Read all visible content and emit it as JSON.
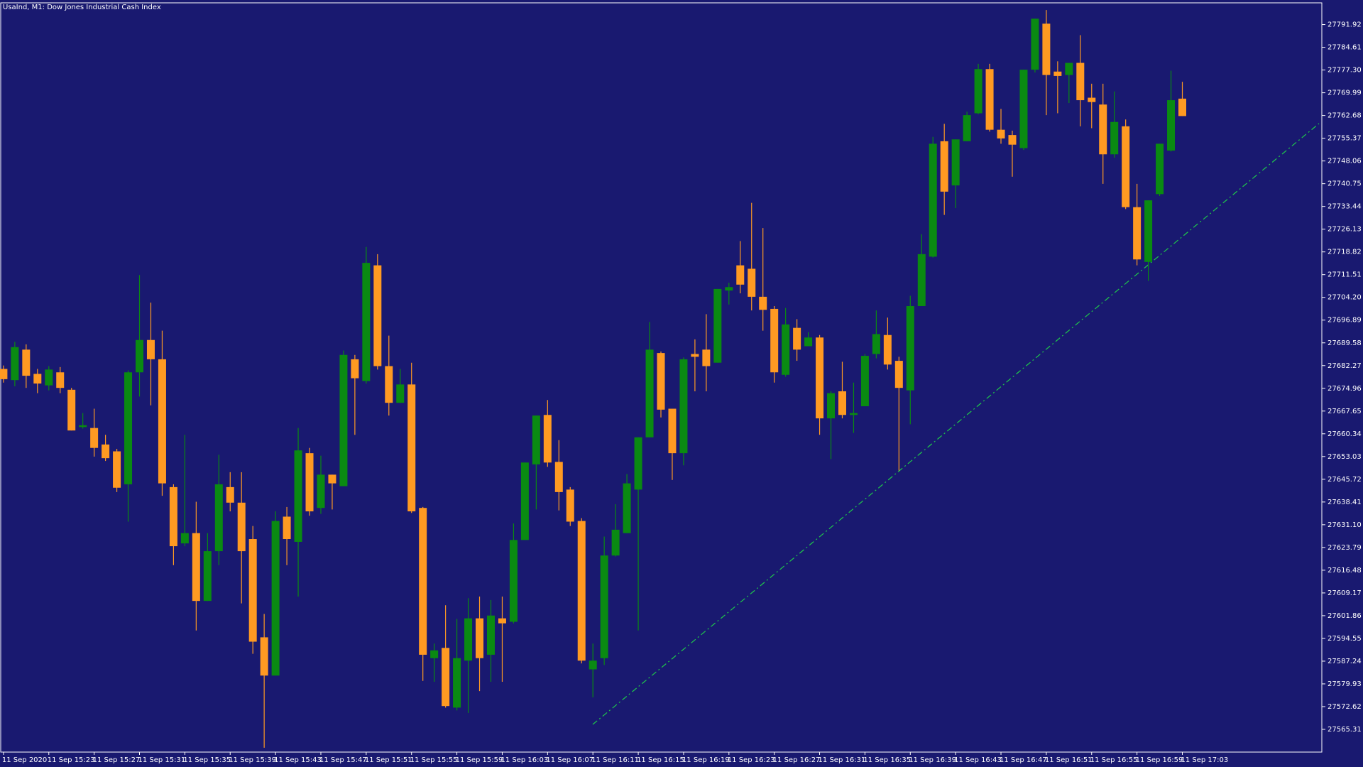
{
  "chart_data": {
    "type": "candlestick",
    "title": "UsaInd, M1:  Dow Jones Industrial Cash Index",
    "up_color": "#0a8a12",
    "down_color": "#ff9a22",
    "background": "#191970",
    "trendline_color": "#1fc94a",
    "categories": [
      "11 Sep 2020",
      null,
      null,
      null,
      "11 Sep 15:23",
      null,
      null,
      null,
      "11 Sep 15:27",
      null,
      null,
      null,
      "11 Sep 15:31",
      null,
      null,
      null,
      "11 Sep 15:35",
      null,
      null,
      null,
      "11 Sep 15:39",
      null,
      null,
      null,
      "11 Sep 15:43",
      null,
      null,
      null,
      "11 Sep 15:47",
      null,
      null,
      null,
      "11 Sep 15:51",
      null,
      null,
      null,
      "11 Sep 15:55",
      null,
      null,
      null,
      "11 Sep 15:59",
      null,
      null,
      null,
      "11 Sep 16:03",
      null,
      null,
      null,
      "11 Sep 16:07",
      null,
      null,
      null,
      "11 Sep 16:11",
      null,
      null,
      null,
      "11 Sep 16:15",
      null,
      null,
      null,
      "11 Sep 16:19",
      null,
      null,
      null,
      "11 Sep 16:23",
      null,
      null,
      null,
      "11 Sep 16:27",
      null,
      null,
      null,
      "11 Sep 16:31",
      null,
      null,
      null,
      "11 Sep 16:35",
      null,
      null,
      null,
      "11 Sep 16:39",
      null,
      null,
      null,
      "11 Sep 16:43",
      null,
      null,
      null,
      "11 Sep 16:47",
      null,
      null,
      null,
      "11 Sep 16:51",
      null,
      null,
      null,
      "11 Sep 16:55",
      null,
      null,
      null,
      "11 Sep 16:59",
      null,
      null,
      null,
      "11 Sep 17:03"
    ],
    "open": [
      27681.2,
      27677.6,
      27687.4,
      27679.6,
      27675.9,
      27680.1,
      27674.5,
      27662.5,
      27662.2,
      27656.9,
      27654.7,
      27644.1,
      27680.1,
      27690.5,
      27684.3,
      27643.2,
      27625.1,
      27628.4,
      27606.6,
      27622.6,
      27643.2,
      27638.2,
      27626.5,
      27594.9,
      27582.6,
      27633.7,
      27625.6,
      27654.1,
      27636.5,
      27647.2,
      27643.5,
      27684.3,
      27677.3,
      27714.5,
      27682.1,
      27670.3,
      27676.2,
      27636.5,
      27588.2,
      27591.5,
      27572.3,
      27587.4,
      27601.0,
      27589.3,
      27601.0,
      27599.9,
      27626.2,
      27650.5,
      27666.4,
      27651.3,
      27642.4,
      27632.3,
      27584.6,
      27588.2,
      27621.2,
      27628.4,
      27642.4,
      27659.2,
      27686.3,
      27668.4,
      27654.1,
      27686.0,
      27687.4,
      27683.2,
      27706.4,
      27714.5,
      27713.4,
      27704.4,
      27700.5,
      27679.3,
      27694.4,
      27688.5,
      27691.3,
      27665.3,
      27674.0,
      27666.4,
      27669.2,
      27686.0,
      27692.1,
      27683.8,
      27674.3,
      27701.4,
      27717.3,
      27754.4,
      27740.2,
      27754.4,
      27763.4,
      27777.6,
      27758.1,
      27756.4,
      27752.2,
      27777.4,
      27792.2,
      27776.8,
      27775.7,
      27779.6,
      27768.4,
      27766.2,
      27750.2,
      27759.2,
      27733.2,
      27715.6,
      27737.4,
      27751.4,
      27768.1
    ],
    "high": [
      27682.3,
      27689.9,
      27689.1,
      27681.2,
      27682.1,
      27681.8,
      27675.1,
      27667.0,
      27668.4,
      27660.0,
      27655.5,
      27680.7,
      27711.4,
      27702.5,
      27693.5,
      27644.1,
      27660.0,
      27638.5,
      27628.4,
      27653.6,
      27648.0,
      27648.0,
      27630.7,
      27602.4,
      27635.4,
      27636.8,
      27662.2,
      27655.8,
      27653.3,
      27647.2,
      27687.1,
      27685.7,
      27720.4,
      27718.1,
      27691.9,
      27681.2,
      27683.2,
      27636.8,
      27592.9,
      27605.2,
      27600.8,
      27607.5,
      27608.0,
      27606.9,
      27608.0,
      27631.5,
      27651.1,
      27666.2,
      27671.2,
      27658.3,
      27643.2,
      27633.2,
      27592.9,
      27627.3,
      27637.7,
      27647.4,
      27659.2,
      27696.3,
      27686.8,
      27668.4,
      27684.9,
      27690.7,
      27698.8,
      27706.9,
      27708.9,
      27722.3,
      27734.6,
      27726.5,
      27701.4,
      27700.8,
      27697.2,
      27693.0,
      27692.1,
      27674.0,
      27683.5,
      27676.8,
      27686.0,
      27700.0,
      27697.7,
      27685.1,
      27704.7,
      27724.5,
      27755.8,
      27760.0,
      27755.0,
      27763.9,
      27779.3,
      27779.3,
      27764.8,
      27757.8,
      27777.4,
      27793.8,
      27796.6,
      27780.1,
      27779.6,
      27788.5,
      27772.9,
      27772.9,
      27770.4,
      27761.4,
      27740.7,
      27735.4,
      27753.6,
      27777.1,
      27773.5
    ],
    "low": [
      27676.8,
      27675.6,
      27675.1,
      27673.4,
      27674.3,
      27673.4,
      27661.4,
      27662.0,
      27653.0,
      27651.6,
      27641.6,
      27632.1,
      27672.3,
      27669.5,
      27640.4,
      27618.1,
      27624.2,
      27597.1,
      27606.6,
      27618.1,
      27635.4,
      27605.8,
      27589.6,
      27559.4,
      27582.6,
      27618.1,
      27608.0,
      27634.0,
      27634.6,
      27636.0,
      27643.5,
      27660.0,
      27676.5,
      27681.0,
      27666.2,
      27670.3,
      27634.9,
      27580.9,
      27580.6,
      27572.3,
      27571.4,
      27570.6,
      27577.6,
      27580.6,
      27580.6,
      27599.4,
      27626.2,
      27636.0,
      27649.7,
      27635.7,
      27630.7,
      27586.5,
      27575.6,
      27586.0,
      27620.9,
      27628.4,
      27597.1,
      27659.2,
      27665.6,
      27645.5,
      27650.2,
      27674.0,
      27674.0,
      27683.2,
      27701.9,
      27705.5,
      27700.0,
      27693.5,
      27676.8,
      27678.7,
      27683.8,
      27688.5,
      27660.0,
      27652.2,
      27665.3,
      27660.6,
      27669.2,
      27684.6,
      27681.0,
      27648.5,
      27663.4,
      27701.4,
      27717.0,
      27730.7,
      27732.9,
      27754.4,
      27763.1,
      27757.5,
      27753.6,
      27743.0,
      27751.6,
      27776.5,
      27762.8,
      27763.4,
      27766.7,
      27759.2,
      27758.6,
      27740.7,
      27749.1,
      27732.6,
      27714.5,
      27709.5,
      27736.8,
      27751.1,
      27762.5
    ],
    "close": [
      27677.9,
      27688.2,
      27679.0,
      27676.5,
      27681.0,
      27675.1,
      27661.4,
      27663.1,
      27655.8,
      27652.5,
      27643.0,
      27680.1,
      27690.5,
      27684.3,
      27644.4,
      27624.2,
      27628.4,
      27606.6,
      27622.6,
      27644.1,
      27638.2,
      27622.6,
      27593.5,
      27582.6,
      27632.3,
      27626.5,
      27655.0,
      27635.4,
      27647.2,
      27644.4,
      27685.7,
      27678.2,
      27715.3,
      27682.1,
      27670.3,
      27676.2,
      27635.4,
      27589.3,
      27590.7,
      27572.8,
      27588.2,
      27601.0,
      27588.2,
      27601.9,
      27599.4,
      27626.2,
      27651.1,
      27666.2,
      27651.1,
      27641.6,
      27632.1,
      27587.4,
      27587.4,
      27621.2,
      27629.5,
      27644.4,
      27659.2,
      27687.4,
      27668.1,
      27654.1,
      27684.3,
      27685.1,
      27682.1,
      27706.9,
      27707.5,
      27708.3,
      27704.4,
      27700.2,
      27680.1,
      27695.5,
      27687.4,
      27691.3,
      27665.3,
      27673.4,
      27666.4,
      27667.0,
      27685.4,
      27692.4,
      27682.6,
      27675.1,
      27701.4,
      27718.1,
      27753.6,
      27738.2,
      27755.0,
      27762.8,
      27777.6,
      27758.1,
      27755.3,
      27753.3,
      27777.4,
      27793.8,
      27775.7,
      27775.4,
      27779.6,
      27767.6,
      27767.0,
      27750.2,
      27760.6,
      27733.2,
      27716.4,
      27735.4,
      27753.6,
      27767.6,
      27762.5
    ],
    "ylim": [
      27558.0,
      27798.9
    ],
    "yticks": [
      27565.31,
      27572.62,
      27579.93,
      27587.24,
      27594.55,
      27601.86,
      27609.17,
      27616.48,
      27623.79,
      {
        "value": 27631.1,
        "label": "27631.10"
      },
      27638.41,
      27645.72,
      27653.03,
      27660.34,
      27667.65,
      27674.96,
      27682.27,
      27689.58,
      27696.89,
      {
        "value": 27704.2,
        "label": "27704.20"
      },
      27711.51,
      27718.82,
      27726.13,
      27733.44,
      27740.75,
      27748.06,
      27755.37,
      27762.68,
      27769.99,
      {
        "value": 27777.3,
        "label": "27777.30"
      },
      27784.61,
      27791.92
    ]
  }
}
